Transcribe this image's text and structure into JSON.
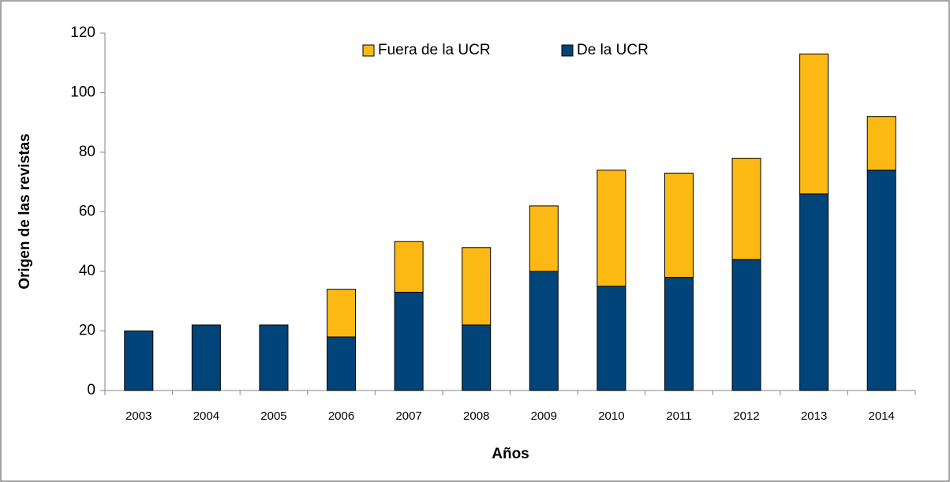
{
  "chart_data": {
    "type": "stacked_bar",
    "x_label": "Años",
    "y_label": "Origen de las revistas",
    "categories": [
      "2003",
      "2004",
      "2005",
      "2006",
      "2007",
      "2008",
      "2009",
      "2010",
      "2011",
      "2012",
      "2013",
      "2014"
    ],
    "series": [
      {
        "name": "De la UCR",
        "color": "#004479",
        "values": [
          20,
          22,
          22,
          18,
          33,
          22,
          40,
          35,
          38,
          44,
          66,
          74
        ]
      },
      {
        "name": "Fuera de la UCR",
        "color": "#fdb913",
        "values": [
          0,
          0,
          0,
          16,
          17,
          26,
          22,
          39,
          35,
          34,
          47,
          18
        ]
      }
    ],
    "ylim": [
      0,
      120
    ],
    "yticks": [
      0,
      20,
      40,
      60,
      80,
      100,
      120
    ],
    "grid": false,
    "legend": "top"
  }
}
